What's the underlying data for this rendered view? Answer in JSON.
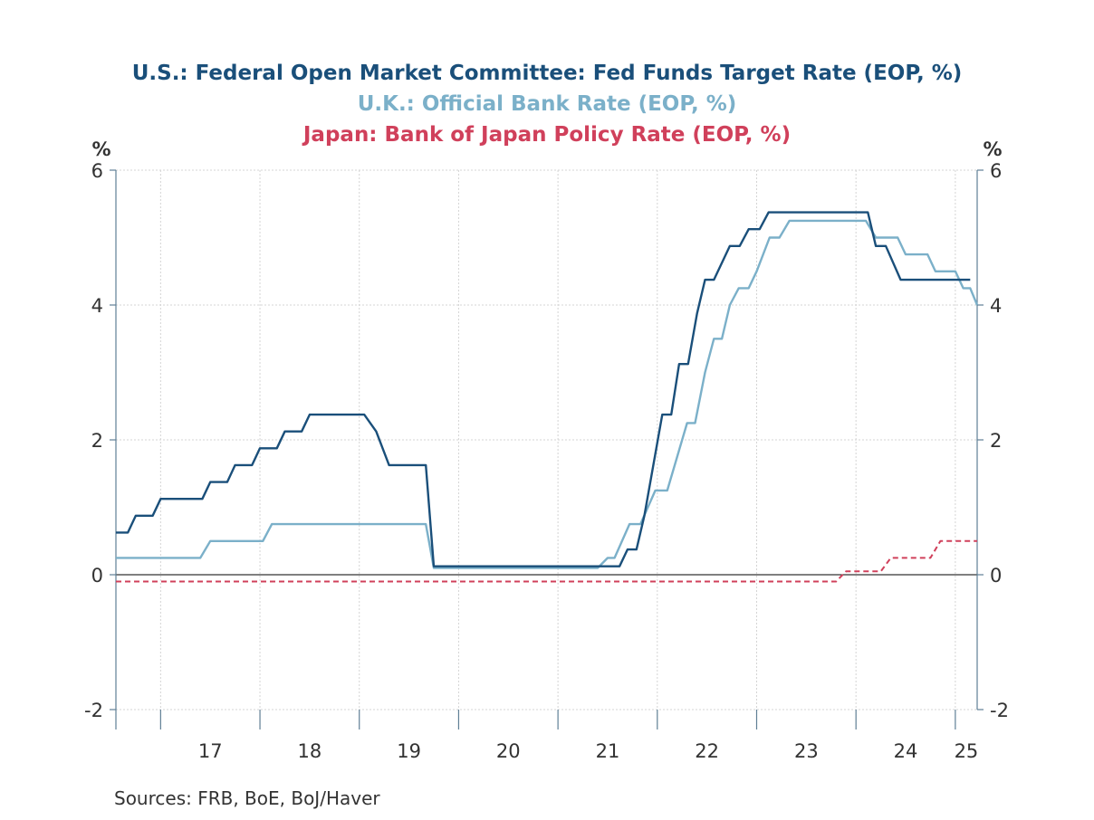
{
  "titles": {
    "us": "U.S.: Federal Open Market Committee: Fed Funds Target Rate (EOP, %)",
    "uk": "U.K.: Official Bank Rate (EOP, %)",
    "jp": "Japan: Bank of Japan Policy Rate (EOP, %)"
  },
  "source": "Sources:  FRB, BoE, BoJ/Haver",
  "chart_data": {
    "type": "line",
    "y_unit_left": "%",
    "y_unit_right": "%",
    "ylim": [
      -2,
      6
    ],
    "yticks": [
      6,
      4,
      2,
      0,
      -2
    ],
    "xlim": [
      2016.55,
      2025.22
    ],
    "x_tick_labels": [
      "17",
      "18",
      "19",
      "20",
      "21",
      "22",
      "23",
      "24",
      "25"
    ],
    "grid": true,
    "series": [
      {
        "name": "U.S.: Federal Open Market Committee: Fed Funds Target Rate (EOP, %)",
        "color": "#1a4f7a",
        "style": "solid",
        "points": [
          [
            2016.55,
            0.625
          ],
          [
            2016.67,
            0.625
          ],
          [
            2016.75,
            0.875
          ],
          [
            2016.92,
            0.875
          ],
          [
            2017.0,
            1.125
          ],
          [
            2017.42,
            1.125
          ],
          [
            2017.5,
            1.375
          ],
          [
            2017.67,
            1.375
          ],
          [
            2017.75,
            1.625
          ],
          [
            2017.92,
            1.625
          ],
          [
            2018.0,
            1.875
          ],
          [
            2018.17,
            1.875
          ],
          [
            2018.25,
            2.125
          ],
          [
            2018.42,
            2.125
          ],
          [
            2018.5,
            2.375
          ],
          [
            2019.05,
            2.375
          ],
          [
            2019.17,
            2.125
          ],
          [
            2019.3,
            1.625
          ],
          [
            2019.67,
            1.625
          ],
          [
            2019.75,
            0.125
          ],
          [
            2021.62,
            0.125
          ],
          [
            2021.7,
            0.375
          ],
          [
            2021.79,
            0.375
          ],
          [
            2021.87,
            0.875
          ],
          [
            2022.05,
            2.375
          ],
          [
            2022.14,
            2.375
          ],
          [
            2022.22,
            3.125
          ],
          [
            2022.31,
            3.125
          ],
          [
            2022.4,
            3.875
          ],
          [
            2022.48,
            4.375
          ],
          [
            2022.57,
            4.375
          ],
          [
            2022.73,
            4.875
          ],
          [
            2022.83,
            4.875
          ],
          [
            2022.92,
            5.125
          ],
          [
            2023.03,
            5.125
          ],
          [
            2023.12,
            5.375
          ],
          [
            2024.12,
            5.375
          ],
          [
            2024.2,
            4.875
          ],
          [
            2024.3,
            4.875
          ],
          [
            2024.45,
            4.375
          ],
          [
            2025.15,
            4.375
          ]
        ]
      },
      {
        "name": "U.K.: Official Bank Rate (EOP, %)",
        "color": "#7bb0c9",
        "style": "solid",
        "points": [
          [
            2016.55,
            0.25
          ],
          [
            2017.4,
            0.25
          ],
          [
            2017.5,
            0.5
          ],
          [
            2018.03,
            0.5
          ],
          [
            2018.12,
            0.75
          ],
          [
            2019.67,
            0.75
          ],
          [
            2019.75,
            0.1
          ],
          [
            2021.4,
            0.1
          ],
          [
            2021.5,
            0.25
          ],
          [
            2021.57,
            0.25
          ],
          [
            2021.72,
            0.75
          ],
          [
            2021.83,
            0.75
          ],
          [
            2021.98,
            1.25
          ],
          [
            2022.1,
            1.25
          ],
          [
            2022.3,
            2.25
          ],
          [
            2022.38,
            2.25
          ],
          [
            2022.48,
            3.0
          ],
          [
            2022.57,
            3.5
          ],
          [
            2022.65,
            3.5
          ],
          [
            2022.73,
            4.0
          ],
          [
            2022.82,
            4.25
          ],
          [
            2022.92,
            4.25
          ],
          [
            2023.0,
            4.5
          ],
          [
            2023.13,
            5.0
          ],
          [
            2023.23,
            5.0
          ],
          [
            2023.33,
            5.25
          ],
          [
            2024.1,
            5.25
          ],
          [
            2024.2,
            5.0
          ],
          [
            2024.42,
            5.0
          ],
          [
            2024.5,
            4.75
          ],
          [
            2024.72,
            4.75
          ],
          [
            2024.8,
            4.5
          ],
          [
            2025.0,
            4.5
          ],
          [
            2025.08,
            4.25
          ],
          [
            2025.15,
            4.25
          ],
          [
            2025.22,
            4.0
          ]
        ]
      },
      {
        "name": "Japan: Bank of Japan Policy Rate (EOP, %)",
        "color": "#d0405b",
        "style": "dashed",
        "points": [
          [
            2016.55,
            -0.1
          ],
          [
            2023.8,
            -0.1
          ],
          [
            2023.9,
            0.05
          ],
          [
            2024.25,
            0.05
          ],
          [
            2024.35,
            0.25
          ],
          [
            2024.75,
            0.25
          ],
          [
            2024.85,
            0.5
          ],
          [
            2025.22,
            0.5
          ]
        ]
      }
    ]
  }
}
